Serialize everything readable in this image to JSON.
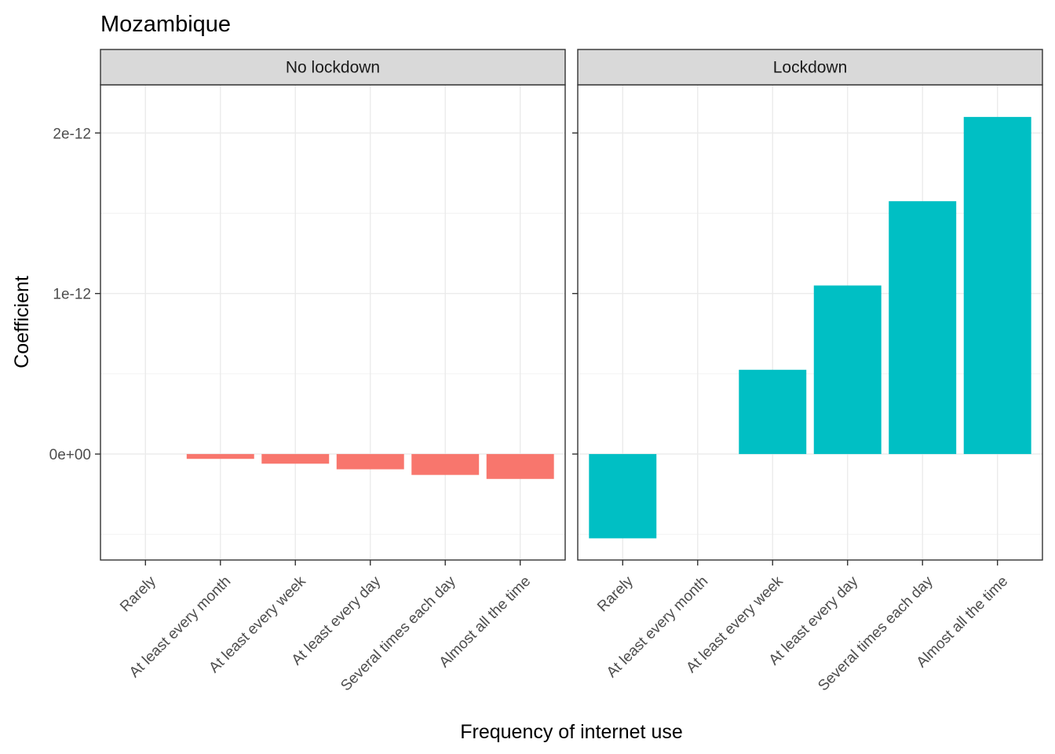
{
  "chart_data": {
    "type": "bar",
    "title": "Mozambique",
    "xlabel": "Frequency of internet use",
    "ylabel": "Coefficient",
    "categories": [
      "Rarely",
      "At least every month",
      "At least every week",
      "At least every day",
      "Several times each day",
      "Almost all the time"
    ],
    "y_ticks": [
      {
        "value": 0,
        "label": "0e+00"
      },
      {
        "value": 1e-12,
        "label": "1e-12"
      },
      {
        "value": 2e-12,
        "label": "2e-12"
      }
    ],
    "ylim": [
      -6.6e-13,
      2.3e-12
    ],
    "grid": true,
    "legend": "none",
    "panels": [
      {
        "name": "No lockdown",
        "color": "#F8766D",
        "values": [
          null,
          -3e-14,
          -6e-14,
          -9.5e-14,
          -1.3e-13,
          -1.55e-13
        ]
      },
      {
        "name": "Lockdown",
        "color": "#00BFC4",
        "values": [
          -5.25e-13,
          null,
          5.25e-13,
          1.05e-12,
          1.575e-12,
          2.1e-12
        ]
      }
    ]
  }
}
